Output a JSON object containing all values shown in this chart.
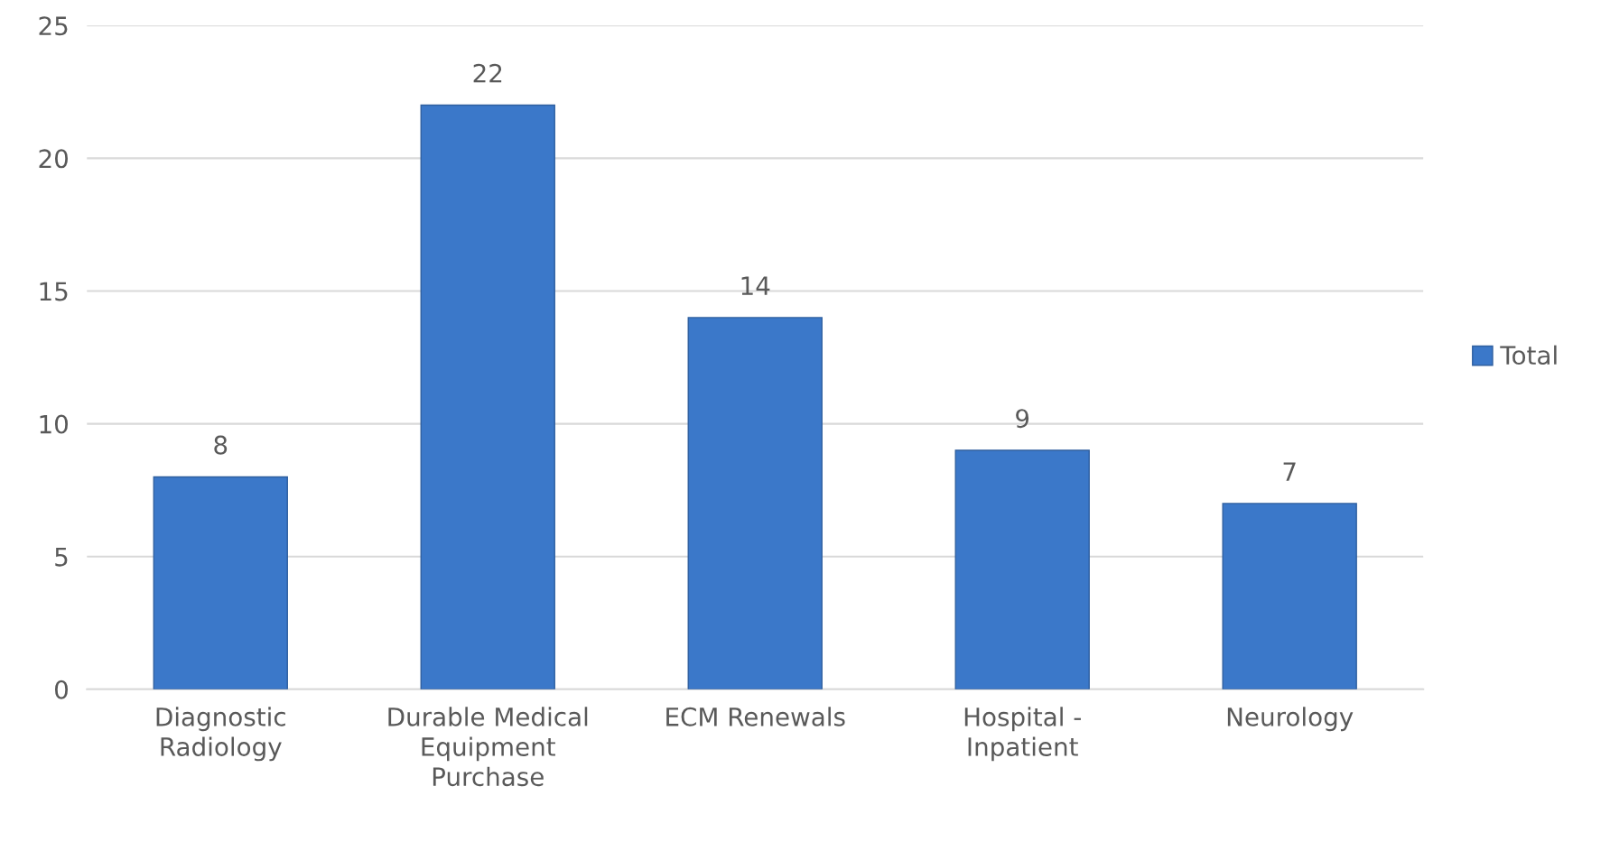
{
  "chart_data": {
    "type": "bar",
    "categories": [
      "Diagnostic\nRadiology",
      "Durable Medical\nEquipment\nPurchase",
      "ECM Renewals",
      "Hospital -\nInpatient",
      "Neurology"
    ],
    "series": [
      {
        "name": "Total",
        "color": "#3b78c9",
        "values": [
          8,
          22,
          14,
          9,
          7
        ]
      }
    ],
    "ylim": [
      0,
      25
    ],
    "yticks": [
      0,
      5,
      10,
      15,
      20,
      25
    ],
    "grid": "y",
    "legend": "right",
    "data_labels": true
  }
}
